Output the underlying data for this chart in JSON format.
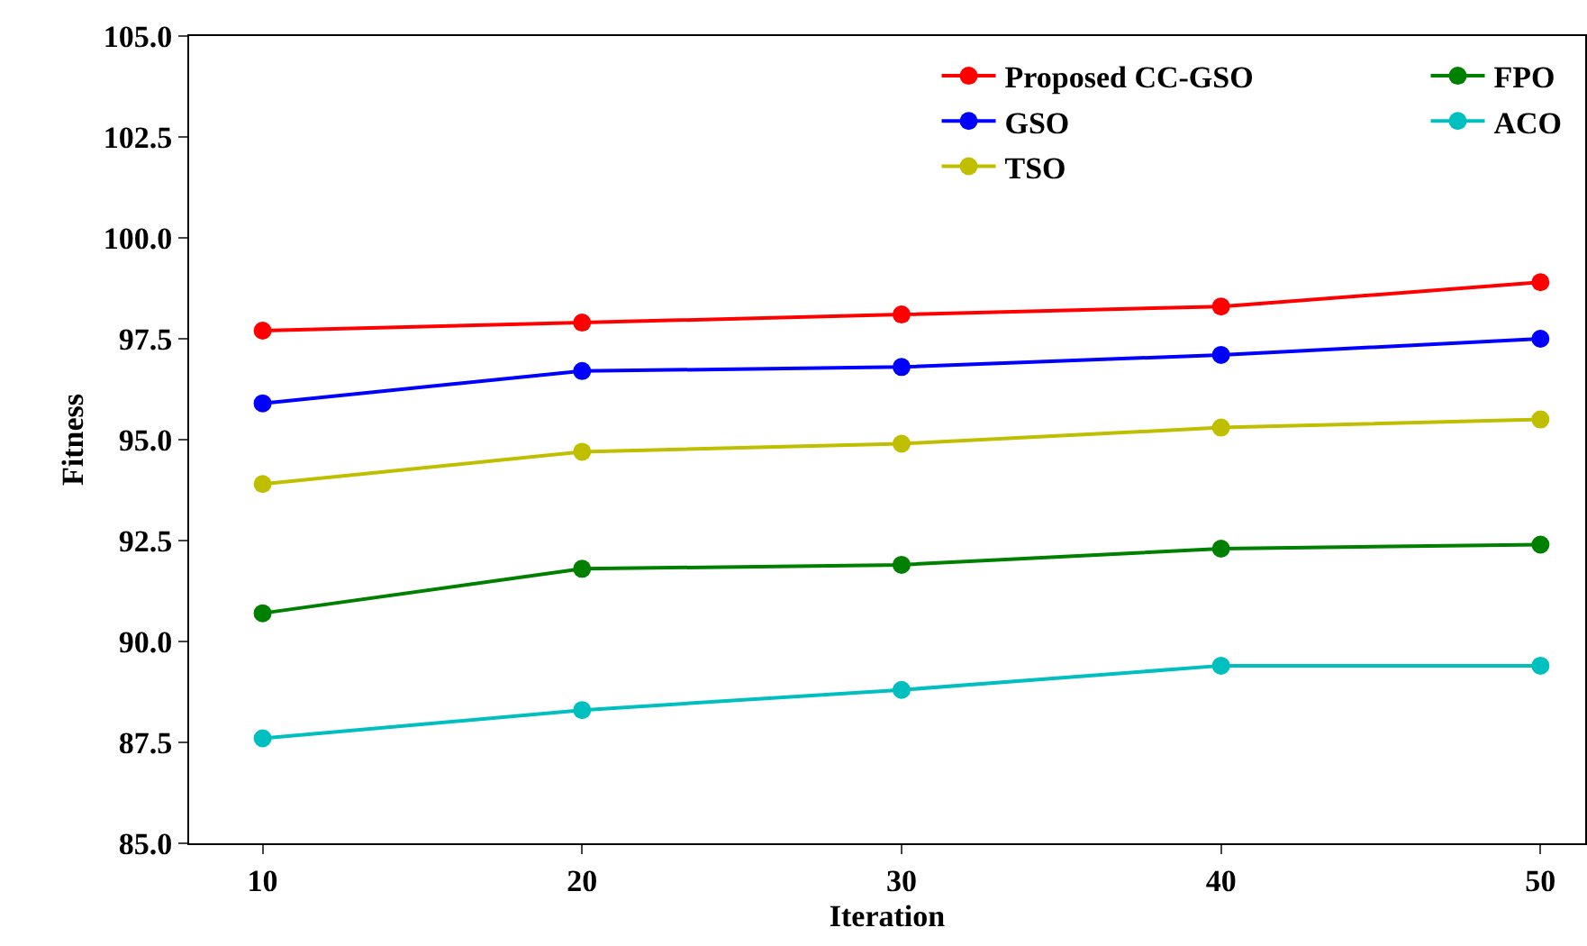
{
  "chart_data": {
    "type": "line",
    "xlabel": "Iteration",
    "ylabel": "Fitness",
    "x": [
      10,
      20,
      30,
      40,
      50
    ],
    "series": [
      {
        "name": "Proposed CC-GSO",
        "color": "#ff0000",
        "values": [
          97.7,
          97.9,
          98.1,
          98.3,
          98.9
        ]
      },
      {
        "name": "GSO",
        "color": "#0000ff",
        "values": [
          95.9,
          96.7,
          96.8,
          97.1,
          97.5
        ]
      },
      {
        "name": "TSO",
        "color": "#bfbf00",
        "values": [
          93.9,
          94.7,
          94.9,
          95.3,
          95.5
        ]
      },
      {
        "name": "FPO",
        "color": "#008000",
        "values": [
          90.7,
          91.8,
          91.9,
          92.3,
          92.4
        ]
      },
      {
        "name": "ACO",
        "color": "#00bfbf",
        "values": [
          87.6,
          88.3,
          88.8,
          89.4,
          89.4
        ]
      }
    ],
    "xlim": [
      7.7,
      51.4
    ],
    "xticks": [
      10,
      20,
      30,
      40,
      50
    ],
    "ylim": [
      85,
      105
    ],
    "yticks": [
      {
        "value": 85,
        "label": "85.0"
      },
      {
        "value": 87.5,
        "label": "87.5"
      },
      {
        "value": 90,
        "label": "90.0"
      },
      {
        "value": 92.5,
        "label": "92.5"
      },
      {
        "value": 95,
        "label": "95.0"
      },
      {
        "value": 97.5,
        "label": "97.5"
      },
      {
        "value": 100,
        "label": "100.0"
      },
      {
        "value": 102.5,
        "label": "102.5"
      },
      {
        "value": 105,
        "label": "105.0"
      }
    ],
    "marker": "circle",
    "line_style": "solid",
    "legend": "top right",
    "grid": false
  }
}
